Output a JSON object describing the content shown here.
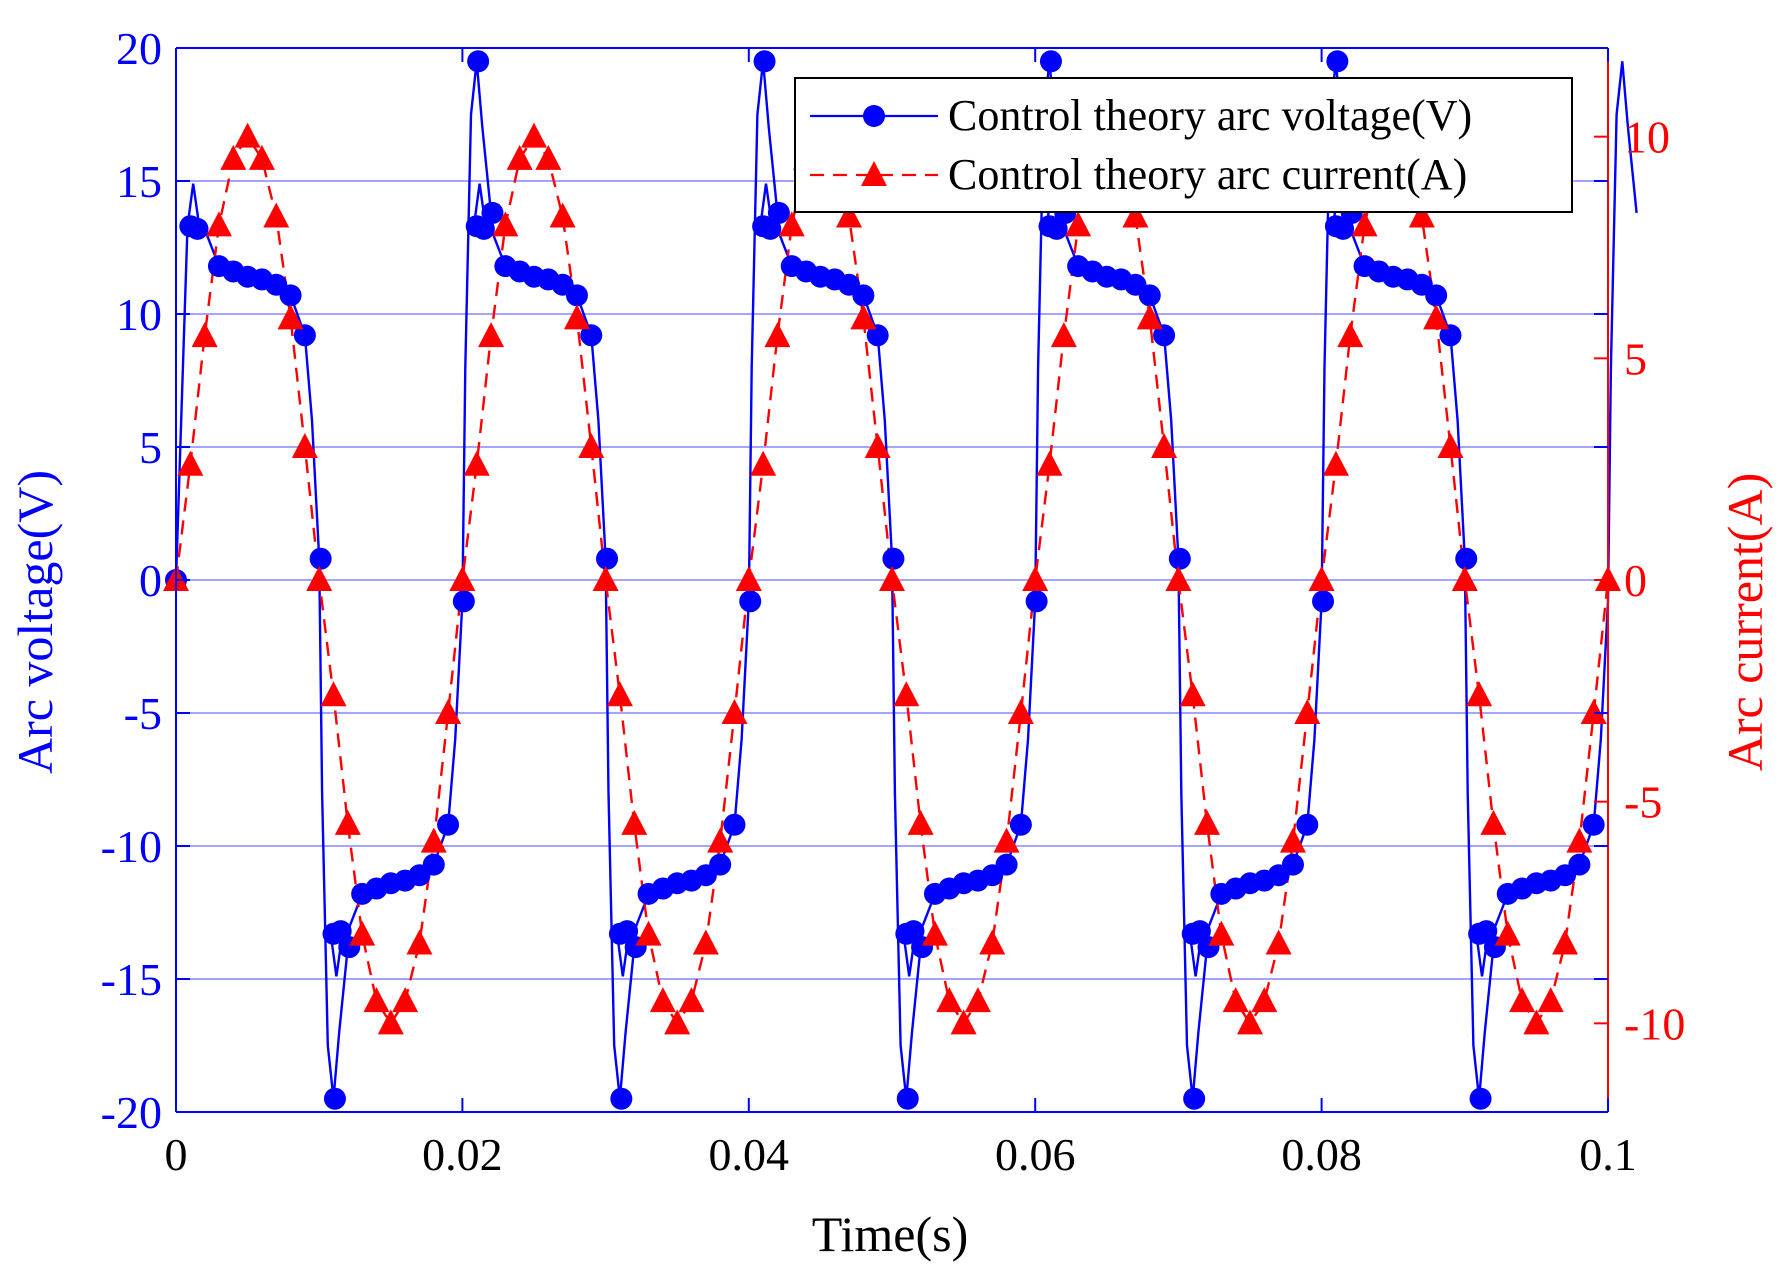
{
  "chart_data": {
    "type": "line",
    "xlabel": "Time(s)",
    "ylabel_left": "Arc voltage(V)",
    "ylabel_right": "Arc current(A)",
    "xlim": [
      0,
      0.1
    ],
    "ylim_left": [
      -20,
      20
    ],
    "ylim_right": [
      -12,
      12
    ],
    "x_ticks": [
      0,
      0.02,
      0.04,
      0.06,
      0.08,
      0.1
    ],
    "x_tick_labels": [
      "0",
      "0.02",
      "0.04",
      "0.06",
      "0.08",
      "0.1"
    ],
    "y_left_ticks": [
      20,
      15,
      10,
      5,
      0,
      -5,
      -10,
      -15,
      -20
    ],
    "y_left_tick_labels": [
      "20",
      "15",
      "10",
      "5",
      "0",
      "-5",
      "-10",
      "-15",
      "-20"
    ],
    "y_right_ticks": [
      10,
      5,
      0,
      -5,
      -10
    ],
    "y_right_tick_labels": [
      "10",
      "5",
      "0",
      "-5",
      "-10"
    ],
    "period": 0.02,
    "legend": {
      "position": "top-right",
      "entries": [
        "Control theory arc voltage(V)",
        "Control theory arc current(A)"
      ]
    },
    "colors": {
      "voltage": "#0000ff",
      "current": "#ff0000",
      "axis_left": "#0000ff",
      "axis_right": "#ff0000",
      "legend_border": "#000000"
    },
    "series": [
      {
        "name": "Control theory arc voltage(V)",
        "axis": "left",
        "style": "solid-line-circle-markers",
        "x": [
          0,
          0.0008,
          0.0012,
          0.0016,
          0.002,
          0.003,
          0.004,
          0.005,
          0.006,
          0.007,
          0.008,
          0.009,
          0.0095,
          0.01,
          0.0102,
          0.0106,
          0.011,
          0.0114,
          0.012
        ],
        "y": [
          0,
          13.3,
          14.9,
          13.4,
          13.2,
          11.8,
          11.6,
          11.4,
          11.3,
          11.1,
          10.7,
          9.2,
          6.0,
          0.8,
          -8.0,
          -17.5,
          -19.5,
          -17.0,
          -13.8
        ],
        "marker_x": [
          0,
          0.001,
          0.0015,
          0.003,
          0.004,
          0.005,
          0.006,
          0.007,
          0.008,
          0.009,
          0.0101,
          0.0111,
          0.0121
        ],
        "marker_y": [
          0,
          13.3,
          13.2,
          11.8,
          11.6,
          11.4,
          11.3,
          11.1,
          10.7,
          9.2,
          0.8,
          -19.5,
          -13.8
        ],
        "waveform_note": "half-wave antisymmetric, repeats every 0.02 s"
      },
      {
        "name": "Control theory arc current(A)",
        "axis": "right",
        "style": "dashed-line-triangle-markers",
        "x": [
          0,
          0.001,
          0.002,
          0.003,
          0.004,
          0.005,
          0.006,
          0.007,
          0.008,
          0.009,
          0.01
        ],
        "y": [
          0,
          2.6,
          5.5,
          8.0,
          9.5,
          10.0,
          9.5,
          8.2,
          5.9,
          3.0,
          0.0
        ],
        "waveform_note": "half-wave antisymmetric, repeats every 0.02 s"
      }
    ]
  }
}
